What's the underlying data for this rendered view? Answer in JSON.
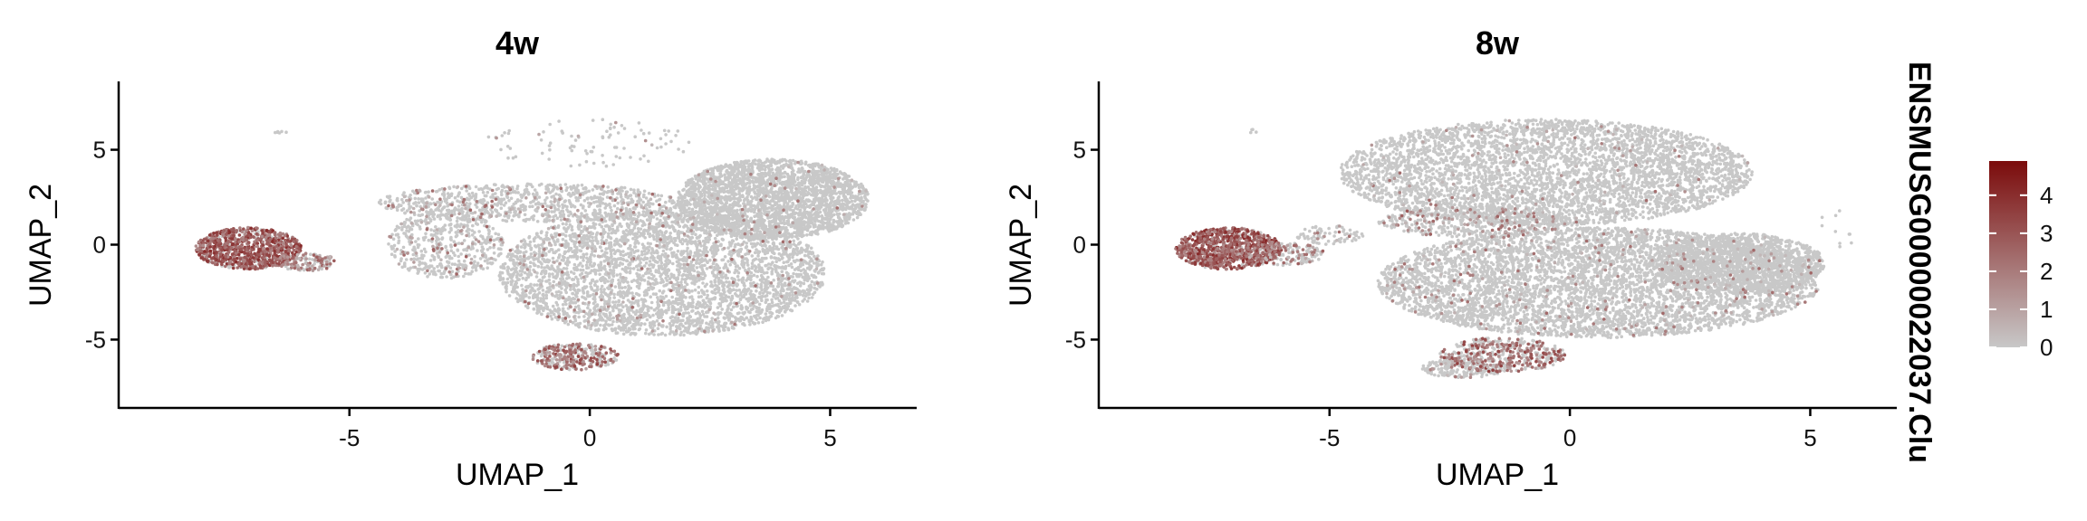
{
  "chart_data": {
    "type": "scatter",
    "feature": "ENSMUSG00000022037.Clu",
    "xlabel": "UMAP_1",
    "ylabel": "UMAP_2",
    "xlim": [
      -9.8,
      6.8
    ],
    "ylim": [
      -8.6,
      8.6
    ],
    "x_ticks": [
      -5,
      0,
      5
    ],
    "y_ticks": [
      -5,
      0,
      5
    ],
    "grid": false,
    "legend_position": "right",
    "colorbar": {
      "title": "ENSMUSG00000022037.Clu",
      "min": 0,
      "max": 4.9,
      "ticks": [
        0,
        1,
        2,
        3,
        4
      ],
      "low_color": "#c8c8c8",
      "high_color": "#7b0b0b"
    },
    "panels": [
      {
        "title": "4w",
        "clusters": [
          {
            "name": "left-island",
            "cx": -7.1,
            "cy": -0.2,
            "rx": 1.1,
            "ry": 1.1,
            "n": 900,
            "expr_prob": 0.85,
            "expr_mean": 2.8
          },
          {
            "name": "left-island-tail",
            "cx": -5.9,
            "cy": -0.9,
            "rx": 0.6,
            "ry": 0.5,
            "n": 160,
            "expr_prob": 0.45,
            "expr_mean": 1.6
          },
          {
            "name": "right-lobe",
            "cx": 3.8,
            "cy": 2.4,
            "rx": 2.0,
            "ry": 2.1,
            "n": 2600,
            "expr_prob": 0.02,
            "expr_mean": 1.0
          },
          {
            "name": "main-body",
            "cx": 1.5,
            "cy": -1.5,
            "rx": 3.4,
            "ry": 3.3,
            "n": 3800,
            "expr_prob": 0.05,
            "expr_mean": 1.2
          },
          {
            "name": "upper-band",
            "cx": -1.2,
            "cy": 2.2,
            "rx": 3.2,
            "ry": 1.0,
            "n": 900,
            "expr_prob": 0.1,
            "expr_mean": 1.3
          },
          {
            "name": "left-bridge",
            "cx": -3.0,
            "cy": 0.0,
            "rx": 1.2,
            "ry": 1.8,
            "n": 500,
            "expr_prob": 0.12,
            "expr_mean": 1.4
          },
          {
            "name": "bottom-hotspot",
            "cx": -0.3,
            "cy": -5.9,
            "rx": 0.9,
            "ry": 0.7,
            "n": 320,
            "expr_prob": 0.55,
            "expr_mean": 2.2
          },
          {
            "name": "sparse-top",
            "cx": 0.0,
            "cy": 5.3,
            "rx": 2.2,
            "ry": 1.3,
            "n": 90,
            "expr_prob": 0.05,
            "expr_mean": 1.0
          },
          {
            "name": "top-left-dot",
            "cx": -6.4,
            "cy": 5.9,
            "rx": 0.15,
            "ry": 0.08,
            "n": 6,
            "expr_prob": 0.0,
            "expr_mean": 0.0
          }
        ]
      },
      {
        "title": "8w",
        "clusters": [
          {
            "name": "left-island",
            "cx": -7.1,
            "cy": -0.2,
            "rx": 1.1,
            "ry": 1.1,
            "n": 900,
            "expr_prob": 0.85,
            "expr_mean": 2.8
          },
          {
            "name": "left-island-tail",
            "cx": -6.0,
            "cy": -0.5,
            "rx": 0.9,
            "ry": 0.6,
            "n": 200,
            "expr_prob": 0.35,
            "expr_mean": 1.5
          },
          {
            "name": "upper-lobe",
            "cx": -0.5,
            "cy": 3.8,
            "rx": 4.3,
            "ry": 2.8,
            "n": 4200,
            "expr_prob": 0.03,
            "expr_mean": 1.1
          },
          {
            "name": "lower-lobe",
            "cx": 0.6,
            "cy": -2.0,
            "rx": 4.6,
            "ry": 2.9,
            "n": 5200,
            "expr_prob": 0.05,
            "expr_mean": 1.2
          },
          {
            "name": "right-lower",
            "cx": 3.5,
            "cy": -1.0,
            "rx": 1.8,
            "ry": 1.6,
            "n": 1400,
            "expr_prob": 0.02,
            "expr_mean": 1.0
          },
          {
            "name": "middle-band",
            "cx": -2.0,
            "cy": 1.2,
            "rx": 2.0,
            "ry": 0.8,
            "n": 500,
            "expr_prob": 0.2,
            "expr_mean": 1.6
          },
          {
            "name": "bottom-hotspot",
            "cx": -1.4,
            "cy": -5.8,
            "rx": 1.3,
            "ry": 0.9,
            "n": 450,
            "expr_prob": 0.5,
            "expr_mean": 2.3
          },
          {
            "name": "bottom-arm",
            "cx": -2.2,
            "cy": -6.5,
            "rx": 0.9,
            "ry": 0.5,
            "n": 200,
            "expr_prob": 0.1,
            "expr_mean": 1.2
          },
          {
            "name": "bridge",
            "cx": -5.0,
            "cy": 0.5,
            "rx": 0.7,
            "ry": 0.5,
            "n": 80,
            "expr_prob": 0.1,
            "expr_mean": 1.2
          },
          {
            "name": "top-left-dot",
            "cx": -6.6,
            "cy": 6.0,
            "rx": 0.2,
            "ry": 0.1,
            "n": 4,
            "expr_prob": 0.0,
            "expr_mean": 0.0
          },
          {
            "name": "right-stragglers",
            "cx": 5.6,
            "cy": 0.5,
            "rx": 0.5,
            "ry": 1.5,
            "n": 10,
            "expr_prob": 0.0,
            "expr_mean": 0.0
          }
        ]
      }
    ]
  }
}
